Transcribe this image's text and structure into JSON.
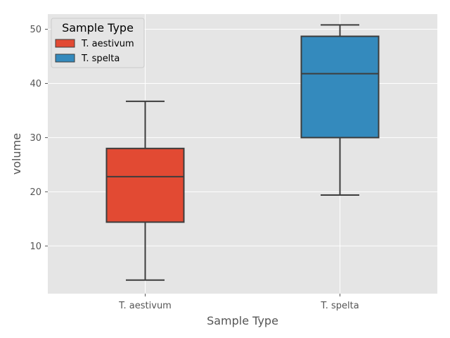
{
  "chart_data": {
    "type": "box",
    "xlabel": "Sample Type",
    "ylabel": "volume",
    "categories": [
      "T. aestivum",
      "T. spelta"
    ],
    "ylim": [
      1.2,
      52.8
    ],
    "yticks": [
      10,
      20,
      30,
      40,
      50
    ],
    "grid": true,
    "legend": {
      "title": "Sample Type",
      "placement": "top-left",
      "entries": [
        "T. aestivum",
        "T. spelta"
      ]
    },
    "series": [
      {
        "name": "T. aestivum",
        "category": "T. aestivum",
        "color": "#E24A33",
        "whisker_low": 3.7,
        "q1": 14.4,
        "median": 22.8,
        "q3": 28.0,
        "whisker_high": 36.7
      },
      {
        "name": "T. spelta",
        "category": "T. spelta",
        "color": "#348ABD",
        "whisker_low": 19.4,
        "q1": 30.0,
        "median": 41.8,
        "q3": 48.7,
        "whisker_high": 50.8
      }
    ]
  },
  "colors": {
    "plot_background": "#E5E5E5",
    "grid": "#FFFFFF",
    "box_edge": "#3D3D3D",
    "text": "#555555"
  }
}
